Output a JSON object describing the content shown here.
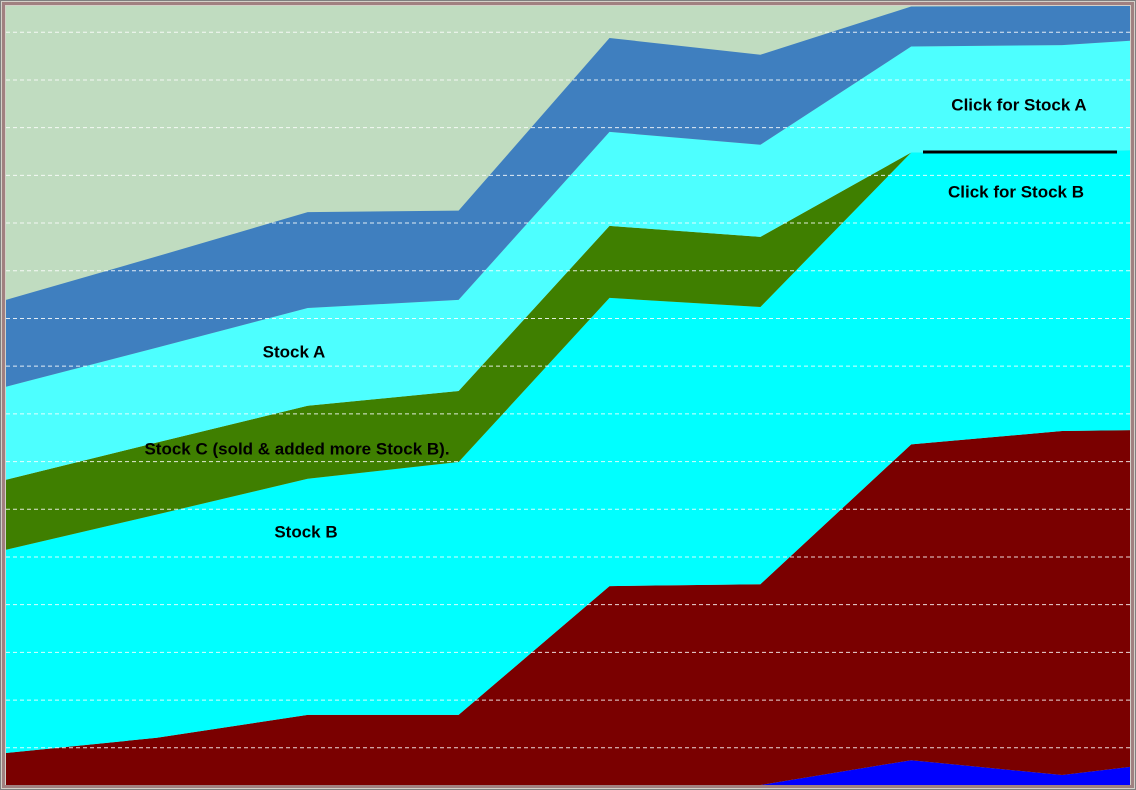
{
  "chart_data": {
    "type": "area",
    "x": [
      0,
      1,
      2,
      3,
      4,
      5,
      6,
      7,
      7.45
    ],
    "xlim": [
      0,
      7.45
    ],
    "ylim": [
      2.2,
      165.5
    ],
    "yticks": [
      10,
      20,
      30,
      40,
      50,
      60,
      70,
      80,
      90,
      100,
      110,
      120,
      130,
      140,
      150,
      160
    ],
    "grid": true,
    "stacked": true,
    "background": "#c0dcc0",
    "series": [
      {
        "color": "#0000ff",
        "values": [
          0,
          0,
          0,
          0,
          0,
          0,
          5.2,
          2.1,
          3.8
        ]
      },
      {
        "color": "#7a0000",
        "values": [
          6.7,
          9.9,
          14.7,
          14.7,
          41.7,
          42.1,
          66.2,
          72.1,
          70.6
        ]
      },
      {
        "name": "Stock B",
        "color": "#00ffff",
        "values": [
          42.6,
          46.8,
          49.5,
          53.0,
          60.4,
          58.1,
          61.2,
          58.5,
          58.7
        ]
      },
      {
        "name": "Stock C (sold & added more Stock B).",
        "color": "#3f7f00",
        "values": [
          14.7,
          15.1,
          15.3,
          14.9,
          15.1,
          14.7,
          0,
          0,
          0
        ]
      },
      {
        "name": "Stock A",
        "color": "#4dffff",
        "values": [
          19.5,
          19.9,
          20.5,
          19.1,
          19.7,
          19.3,
          22.2,
          22.4,
          22.9
        ]
      },
      {
        "color": "#3f7fbf",
        "values": [
          18.2,
          19.1,
          20.1,
          18.7,
          19.7,
          18.9,
          8.4,
          8.2,
          7.3
        ]
      }
    ]
  },
  "buttons": [
    "Click for Stock A",
    "Click for Stock B"
  ]
}
